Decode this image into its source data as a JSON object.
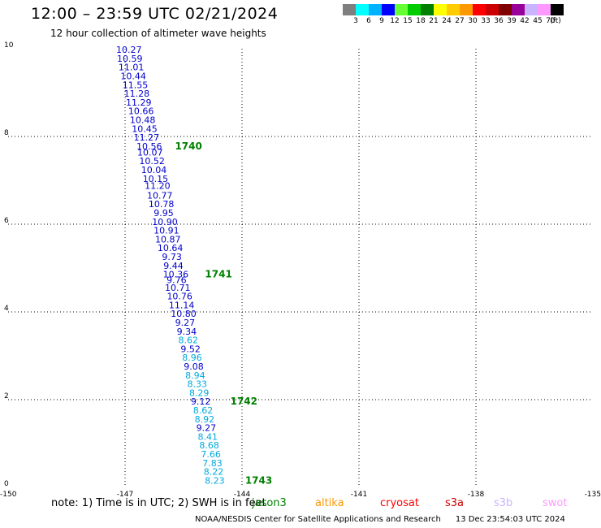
{
  "header": {
    "title": "12:00 – 23:59 UTC 02/21/2024",
    "subtitle": "12 hour collection of altimeter wave heights"
  },
  "colorbar": {
    "colors": [
      "#7f7f7f",
      "#00ffff",
      "#00b3ff",
      "#0000ff",
      "#66ff33",
      "#00cc00",
      "#008000",
      "#ffff00",
      "#ffcc00",
      "#ff9900",
      "#ff0000",
      "#cc0000",
      "#800000",
      "#990099",
      "#c8b4ff",
      "#ff99ff",
      "#000000"
    ],
    "labels": [
      "3",
      "6",
      "9",
      "12",
      "15",
      "18",
      "21",
      "24",
      "27",
      "30",
      "33",
      "36",
      "39",
      "42",
      "45",
      "70",
      "(ft)"
    ]
  },
  "chart_data": {
    "type": "scatter",
    "xlim": [
      -150,
      -135
    ],
    "ylim": [
      0,
      10
    ],
    "x_ticks": [
      "-150",
      "-147",
      "-144",
      "-141",
      "-138",
      "-135"
    ],
    "y_ticks": [
      "10",
      "8",
      "6",
      "4",
      "2",
      "0"
    ],
    "grid": true,
    "track": [
      {
        "x": -146.9,
        "y": 9.98,
        "v": "10.27",
        "c": "#0000cc"
      },
      {
        "x": -146.88,
        "y": 9.78,
        "v": "10.59",
        "c": "#0000cc"
      },
      {
        "x": -146.84,
        "y": 9.58,
        "v": "11.01",
        "c": "#0000cc"
      },
      {
        "x": -146.79,
        "y": 9.38,
        "v": "10.44",
        "c": "#0000cc"
      },
      {
        "x": -146.74,
        "y": 9.18,
        "v": "11.55",
        "c": "#0000cc"
      },
      {
        "x": -146.7,
        "y": 8.98,
        "v": "11.28",
        "c": "#0000cc"
      },
      {
        "x": -146.65,
        "y": 8.78,
        "v": "11.29",
        "c": "#0000cc"
      },
      {
        "x": -146.59,
        "y": 8.58,
        "v": "10.66",
        "c": "#0000cc"
      },
      {
        "x": -146.55,
        "y": 8.38,
        "v": "10.48",
        "c": "#0000cc"
      },
      {
        "x": -146.5,
        "y": 8.18,
        "v": "10.45",
        "c": "#0000cc"
      },
      {
        "x": -146.45,
        "y": 7.98,
        "v": "11.27",
        "c": "#0000cc"
      },
      {
        "x": -146.38,
        "y": 7.78,
        "v": "10.56",
        "c": "#0000cc"
      },
      {
        "x": -146.36,
        "y": 7.64,
        "v": "10.07",
        "c": "#0000cc"
      },
      {
        "x": -146.31,
        "y": 7.44,
        "v": "10.52",
        "c": "#0000cc"
      },
      {
        "x": -146.26,
        "y": 7.24,
        "v": "10.04",
        "c": "#0000cc"
      },
      {
        "x": -146.22,
        "y": 7.04,
        "v": "10.15",
        "c": "#0000cc"
      },
      {
        "x": -146.17,
        "y": 6.88,
        "v": "11.20",
        "c": "#0000cc"
      },
      {
        "x": -146.11,
        "y": 6.66,
        "v": "10.77",
        "c": "#0000cc"
      },
      {
        "x": -146.07,
        "y": 6.46,
        "v": "10.78",
        "c": "#0000cc"
      },
      {
        "x": -146.01,
        "y": 6.26,
        "v": "9.95",
        "c": "#0000cc"
      },
      {
        "x": -145.98,
        "y": 6.06,
        "v": "10.90",
        "c": "#0000cc"
      },
      {
        "x": -145.94,
        "y": 5.86,
        "v": "10.91",
        "c": "#0000cc"
      },
      {
        "x": -145.9,
        "y": 5.66,
        "v": "10.87",
        "c": "#0000cc"
      },
      {
        "x": -145.84,
        "y": 5.46,
        "v": "10.64",
        "c": "#0000cc"
      },
      {
        "x": -145.8,
        "y": 5.26,
        "v": "9.73",
        "c": "#0000cc"
      },
      {
        "x": -145.76,
        "y": 5.06,
        "v": "9.44",
        "c": "#0000cc"
      },
      {
        "x": -145.7,
        "y": 4.86,
        "v": "10.36",
        "c": "#0000cc"
      },
      {
        "x": -145.68,
        "y": 4.73,
        "v": "9.76",
        "c": "#0000cc"
      },
      {
        "x": -145.65,
        "y": 4.56,
        "v": "10.71",
        "c": "#0000cc"
      },
      {
        "x": -145.6,
        "y": 4.36,
        "v": "10.76",
        "c": "#0000cc"
      },
      {
        "x": -145.55,
        "y": 4.16,
        "v": "11.14",
        "c": "#0000cc"
      },
      {
        "x": -145.5,
        "y": 3.96,
        "v": "10.80",
        "c": "#0000cc"
      },
      {
        "x": -145.46,
        "y": 3.76,
        "v": "9.27",
        "c": "#0000cc"
      },
      {
        "x": -145.42,
        "y": 3.56,
        "v": "9.34",
        "c": "#0000cc"
      },
      {
        "x": -145.38,
        "y": 3.36,
        "v": "8.62",
        "c": "#00aadd"
      },
      {
        "x": -145.32,
        "y": 3.16,
        "v": "9.52",
        "c": "#0000cc"
      },
      {
        "x": -145.28,
        "y": 2.96,
        "v": "8.96",
        "c": "#00aadd"
      },
      {
        "x": -145.24,
        "y": 2.76,
        "v": "9.08",
        "c": "#0000cc"
      },
      {
        "x": -145.2,
        "y": 2.56,
        "v": "8.94",
        "c": "#00aadd"
      },
      {
        "x": -145.15,
        "y": 2.36,
        "v": "8.33",
        "c": "#00aadd"
      },
      {
        "x": -145.1,
        "y": 2.16,
        "v": "8.29",
        "c": "#00aadd"
      },
      {
        "x": -145.06,
        "y": 1.96,
        "v": "9.12",
        "c": "#0000cc"
      },
      {
        "x": -145.0,
        "y": 1.76,
        "v": "8.62",
        "c": "#00aadd"
      },
      {
        "x": -144.96,
        "y": 1.56,
        "v": "8.92",
        "c": "#00aadd"
      },
      {
        "x": -144.92,
        "y": 1.36,
        "v": "9.27",
        "c": "#0000cc"
      },
      {
        "x": -144.88,
        "y": 1.16,
        "v": "8.41",
        "c": "#00aadd"
      },
      {
        "x": -144.84,
        "y": 0.96,
        "v": "8.68",
        "c": "#00aadd"
      },
      {
        "x": -144.8,
        "y": 0.76,
        "v": "7.66",
        "c": "#00aadd"
      },
      {
        "x": -144.76,
        "y": 0.56,
        "v": "7.83",
        "c": "#00aadd"
      },
      {
        "x": -144.73,
        "y": 0.36,
        "v": "8.22",
        "c": "#00aadd"
      },
      {
        "x": -144.7,
        "y": 0.16,
        "v": "8.23",
        "c": "#00aadd"
      }
    ],
    "time_labels": [
      {
        "x": -145.72,
        "y": 7.78,
        "text": "1740"
      },
      {
        "x": -144.95,
        "y": 4.86,
        "text": "1741"
      },
      {
        "x": -144.3,
        "y": 1.96,
        "text": "1742"
      },
      {
        "x": -143.92,
        "y": 0.16,
        "text": "1743"
      }
    ],
    "time_label_color": "#008000"
  },
  "legend": {
    "note": "note:  1) Time is in UTC;  2) SWH is in feet",
    "satellites": [
      {
        "name": "jason3",
        "color": "#008000"
      },
      {
        "name": "altika",
        "color": "#ff9900"
      },
      {
        "name": "cryosat",
        "color": "#ff0000"
      },
      {
        "name": "s3a",
        "color": "#cc0000"
      },
      {
        "name": "s3b",
        "color": "#c8b4ff"
      },
      {
        "name": "swot",
        "color": "#ff99ff"
      }
    ]
  },
  "footer": {
    "org": "NOAA/NESDIS Center for Satellite Applications and Research",
    "timestamp": "13 Dec 23:54:03 UTC 2024"
  }
}
